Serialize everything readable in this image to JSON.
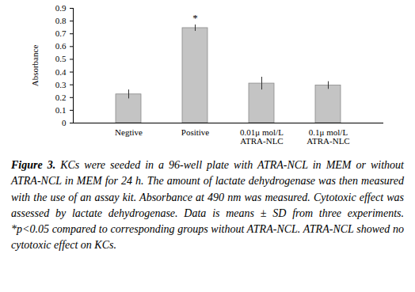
{
  "chart_data": {
    "type": "bar",
    "y_label": "Absorbance",
    "categories": [
      "Negtive",
      "Positive",
      "0.01μ mol/L\nATRA-NLC",
      "0.1μ mol/L\nATRA-NLC"
    ],
    "values": [
      0.225,
      0.745,
      0.31,
      0.295
    ],
    "errors": [
      0.035,
      0.025,
      0.05,
      0.03
    ],
    "color": "#c4c4c4",
    "ylim": [
      0,
      0.9
    ],
    "yticks": [
      0,
      0.1,
      0.2,
      0.3,
      0.4,
      0.5,
      0.6,
      0.7,
      0.8,
      0.9
    ],
    "grid": false,
    "annotations": [
      {
        "category": "Positive",
        "text": "*"
      }
    ],
    "caption_label": "Figure 3.",
    "caption": "KCs were seeded in a 96-well plate with ATRA-NCL in MEM or without ATRA-NCL in MEM for 24 h. The amount of lactate dehydrogenase was then measured with the use of an assay kit. Absorbance at 490 nm was measured. Cytotoxic effect was assessed by lactate dehydrogenase. Data is means ± SD from three experiments. *p<0.05 compared to corresponding groups without ATRA-NCL. ATRA-NCL showed no cytotoxic effect on KCs."
  }
}
